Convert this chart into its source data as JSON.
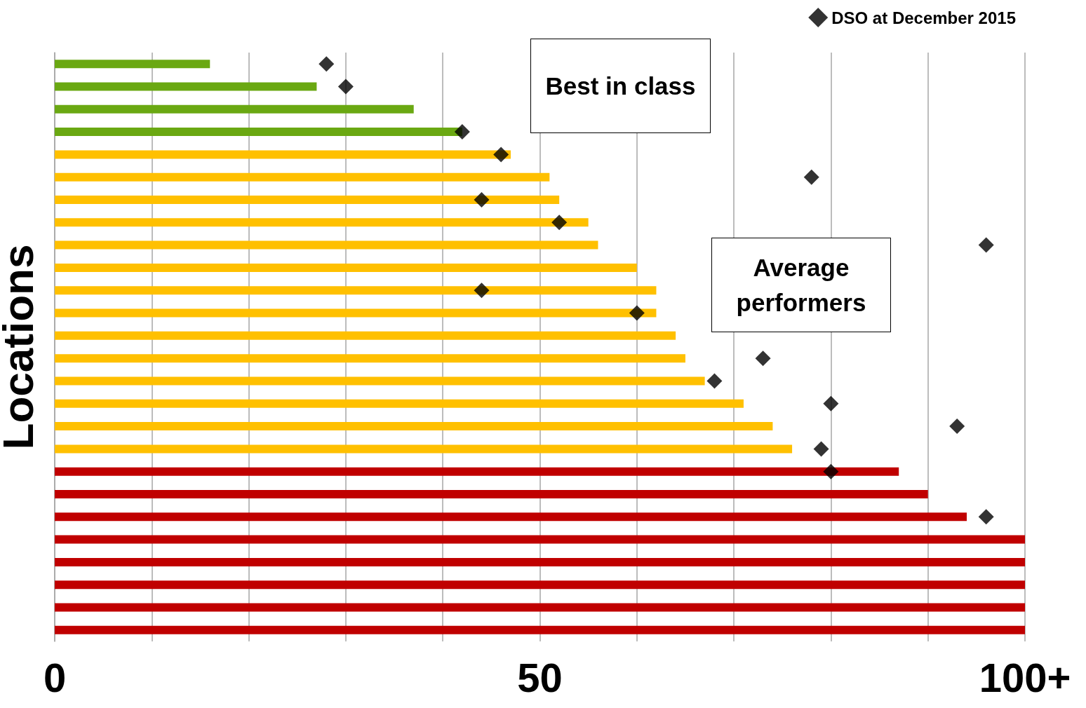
{
  "chart_data": {
    "type": "bar",
    "orientation": "horizontal",
    "ylabel": "Locations",
    "categories": [
      null,
      null,
      null,
      null,
      null,
      null,
      null,
      null,
      null,
      null,
      null,
      null,
      null,
      null,
      null,
      null,
      null,
      null,
      null,
      null,
      null,
      null,
      null,
      null,
      null,
      null
    ],
    "series": [
      {
        "values": [
          16,
          27,
          37,
          42,
          47,
          51,
          52,
          55,
          56,
          60,
          62,
          62,
          64,
          65,
          67,
          71,
          74,
          76,
          87,
          90,
          94,
          100,
          100,
          100,
          100,
          100
        ],
        "colors": [
          "#6aa812",
          "#6aa812",
          "#6aa812",
          "#6aa812",
          "#ffc000",
          "#ffc000",
          "#ffc000",
          "#ffc000",
          "#ffc000",
          "#ffc000",
          "#ffc000",
          "#ffc000",
          "#ffc000",
          "#ffc000",
          "#ffc000",
          "#ffc000",
          "#ffc000",
          "#ffc000",
          "#c00000",
          "#c00000",
          "#c00000",
          "#c00000",
          "#c00000",
          "#c00000",
          "#c00000",
          "#c00000"
        ]
      },
      {
        "type": "scatter",
        "name": "DSO at December 2015",
        "color": "#000000",
        "values": [
          28,
          30,
          null,
          42,
          46,
          78,
          44,
          52,
          96,
          null,
          44,
          60,
          null,
          73,
          68,
          80,
          93,
          79,
          80,
          null,
          96,
          null,
          null,
          null,
          null,
          null
        ]
      }
    ],
    "xlim": [
      0,
      100
    ],
    "xticks": [
      0,
      {
        "value": 10,
        "label": null
      },
      {
        "value": 20,
        "label": null
      },
      {
        "value": 30,
        "label": null
      },
      {
        "value": 40,
        "label": null
      },
      50,
      {
        "value": 60,
        "label": null
      },
      {
        "value": 70,
        "label": null
      },
      {
        "value": 80,
        "label": null
      },
      {
        "value": 90,
        "label": null
      },
      {
        "value": 100,
        "label": "100+"
      }
    ],
    "grid": "x",
    "legend": "top right",
    "marker": "diamond",
    "annotations": [
      "Best in class",
      "Average performers"
    ]
  }
}
